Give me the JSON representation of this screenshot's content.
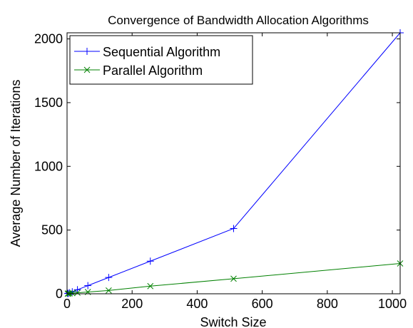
{
  "chart_data": {
    "type": "line",
    "title": "Convergence of Bandwidth Allocation Algorithms",
    "xlabel": "Switch Size",
    "ylabel": "Average Number of Iterations",
    "xlim": [
      0,
      1024
    ],
    "ylim": [
      0,
      2048
    ],
    "xticks": [
      0,
      200,
      400,
      600,
      800,
      1000
    ],
    "yticks": [
      0,
      500,
      1000,
      1500,
      2000
    ],
    "grid": false,
    "legend_position": "top-left",
    "series": [
      {
        "name": "Sequential Algorithm",
        "color": "#0000ff",
        "marker": "plus",
        "x": [
          2,
          4,
          8,
          16,
          32,
          64,
          128,
          256,
          512,
          1024
        ],
        "y": [
          2,
          4,
          8,
          16,
          32,
          64,
          128,
          256,
          512,
          2048
        ]
      },
      {
        "name": "Parallel Algorithm",
        "color": "#008000",
        "marker": "cross",
        "x": [
          2,
          4,
          8,
          16,
          32,
          64,
          128,
          256,
          512,
          1024
        ],
        "y": [
          1,
          2,
          3,
          5,
          8,
          14,
          26,
          60,
          118,
          238
        ]
      }
    ]
  }
}
